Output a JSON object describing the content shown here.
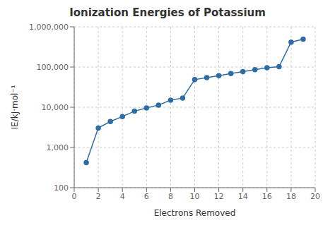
{
  "chart_data": {
    "type": "line",
    "title": "Ionization Energies of Potassium",
    "xlabel": "Electrons Removed",
    "ylabel": "IE/kJ·mol⁻¹",
    "x": [
      1,
      2,
      3,
      4,
      5,
      6,
      7,
      8,
      9,
      10,
      11,
      12,
      13,
      14,
      15,
      16,
      17,
      18,
      19
    ],
    "values": [
      419,
      3052,
      4411,
      5877,
      7975,
      9590,
      11343,
      14944,
      16963,
      48610,
      54490,
      60730,
      68950,
      76800,
      86000,
      96000,
      102000,
      417000,
      492000
    ],
    "color": "#2E6DA4",
    "marker": "circle",
    "log": "y",
    "grid": true,
    "xlim": [
      0,
      20
    ],
    "xticks": [
      0,
      2,
      4,
      6,
      8,
      10,
      12,
      14,
      16,
      18,
      20
    ],
    "ylim": [
      100,
      1000000
    ],
    "yticks": [
      100,
      {
        "value": 1000,
        "label": "1,000"
      },
      {
        "value": 10000,
        "label": "10,000"
      },
      {
        "value": 100000,
        "label": "100,000"
      },
      {
        "value": 1000000,
        "label": "1,000,000"
      }
    ]
  }
}
